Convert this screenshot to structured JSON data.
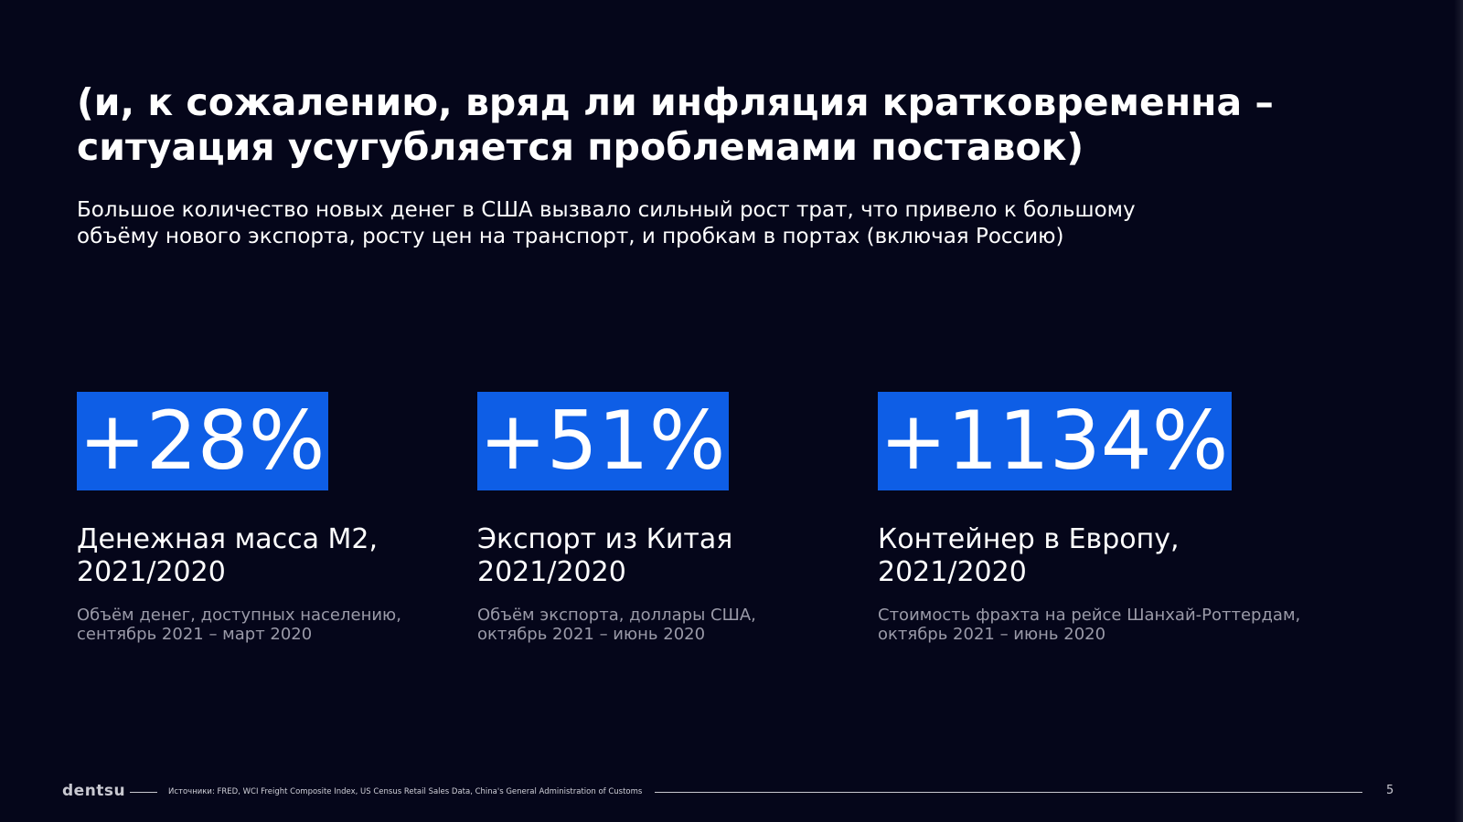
{
  "slide": {
    "title_line1": "(и, к сожалению, вряд ли инфляция кратковременна –",
    "title_line2": "ситуация усугубляется проблемами поставок)",
    "subtitle_line1": "Большое количество новых денег в США вызвало сильный рост трат, что привело к большому",
    "subtitle_line2": "объёму нового экспорта, росту цен на транспорт, и пробкам в портах (включая Россию)"
  },
  "stats": [
    {
      "value": "+28%",
      "label_line1": "Денежная масса М2,",
      "label_line2": "2021/2020",
      "desc_line1": "Объём денег, доступных населению,",
      "desc_line2": "сентябрь 2021 – март 2020"
    },
    {
      "value": "+51%",
      "label_line1": "Экспорт из Китая",
      "label_line2": "2021/2020",
      "desc_line1": "Объём экспорта, доллары США,",
      "desc_line2": "октябрь 2021 – июнь 2020"
    },
    {
      "value": "+1134%",
      "label_line1": "Контейнер в Европу,",
      "label_line2": "2021/2020",
      "desc_line1": "Стоимость фрахта на рейсе Шанхай-Роттердам,",
      "desc_line2": "октябрь 2021 – июнь 2020"
    }
  ],
  "footer": {
    "logo": "dentsu",
    "sources": "Источники: FRED, WCI Freight Composite Index, US Census Retail Sales Data, China's General Administration of Customs",
    "page_number": "5"
  },
  "colors": {
    "background": "#05061a",
    "accent": "#0e5ee6",
    "muted_text": "#9a9aa8"
  }
}
